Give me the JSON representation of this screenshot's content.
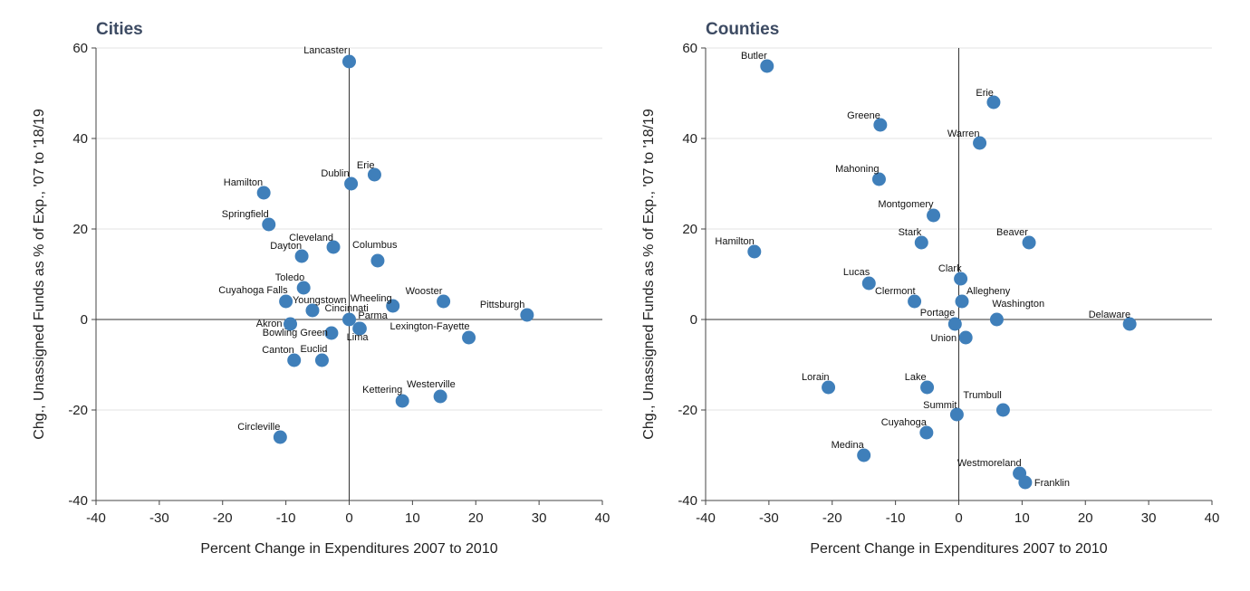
{
  "chart_data": [
    {
      "type": "scatter",
      "title": "Cities",
      "xlabel": "Percent Change in Expenditures 2007 to 2010",
      "ylabel": "Chg., Unassigned Funds as % of Exp., '07 to '18/19",
      "xlim": [
        -40,
        40
      ],
      "ylim": [
        -40,
        60
      ],
      "xticks": [
        -40,
        -30,
        -20,
        -10,
        0,
        10,
        20,
        30,
        40
      ],
      "yticks": [
        -40,
        -20,
        0,
        20,
        40,
        60
      ],
      "grid": "horizontal",
      "marker_color": "#3f7fba",
      "points": [
        {
          "label": "Lancaster",
          "x": 0,
          "y": 57
        },
        {
          "label": "Erie",
          "x": 4,
          "y": 32
        },
        {
          "label": "Dublin",
          "x": 0.3,
          "y": 30
        },
        {
          "label": "Hamilton",
          "x": -13.5,
          "y": 28
        },
        {
          "label": "Springfield",
          "x": -12.7,
          "y": 21
        },
        {
          "label": "Cleveland",
          "x": -2.5,
          "y": 16
        },
        {
          "label": "Dayton",
          "x": -7.5,
          "y": 14
        },
        {
          "label": "Columbus",
          "x": 4.5,
          "y": 13
        },
        {
          "label": "Toledo",
          "x": -7.2,
          "y": 7
        },
        {
          "label": "Cuyahoga Falls",
          "x": -10,
          "y": 4
        },
        {
          "label": "Youngstown",
          "x": -5.8,
          "y": 2
        },
        {
          "label": "Wheeling",
          "x": 6.9,
          "y": 3
        },
        {
          "label": "Wooster",
          "x": 14.9,
          "y": 4
        },
        {
          "label": "Pittsburgh",
          "x": 28.1,
          "y": 1
        },
        {
          "label": "Cincinnati",
          "x": 0,
          "y": 0
        },
        {
          "label": "Parma",
          "x": 1.7,
          "y": -2
        },
        {
          "label": "Akron",
          "x": -9.3,
          "y": -1
        },
        {
          "label": "Bowling Green",
          "x": -2.8,
          "y": -3
        },
        {
          "label": "Lima",
          "x": 1.6,
          "y": -2
        },
        {
          "label": "Lexington-Fayette",
          "x": 18.9,
          "y": -4
        },
        {
          "label": "Canton",
          "x": -8.7,
          "y": -9
        },
        {
          "label": "Euclid",
          "x": -4.3,
          "y": -9
        },
        {
          "label": "Kettering",
          "x": 8.4,
          "y": -18
        },
        {
          "label": "Westerville",
          "x": 14.4,
          "y": -17
        },
        {
          "label": "Circleville",
          "x": -10.9,
          "y": -26
        }
      ]
    },
    {
      "type": "scatter",
      "title": "Counties",
      "xlabel": "Percent Change in Expenditures 2007 to 2010",
      "ylabel": "Chg., Unassigned Funds as % of Exp., '07 to '18/19",
      "xlim": [
        -40,
        40
      ],
      "ylim": [
        -40,
        60
      ],
      "xticks": [
        -40,
        -30,
        -20,
        -10,
        0,
        10,
        20,
        30,
        40
      ],
      "yticks": [
        -40,
        -20,
        0,
        20,
        40,
        60
      ],
      "grid": "horizontal",
      "marker_color": "#3f7fba",
      "points": [
        {
          "label": "Butler",
          "x": -30.3,
          "y": 56
        },
        {
          "label": "Erie",
          "x": 5.5,
          "y": 48
        },
        {
          "label": "Greene",
          "x": -12.4,
          "y": 43
        },
        {
          "label": "Warren",
          "x": 3.3,
          "y": 39
        },
        {
          "label": "Mahoning",
          "x": -12.6,
          "y": 31
        },
        {
          "label": "Montgomery",
          "x": -4,
          "y": 23
        },
        {
          "label": "Stark",
          "x": -5.9,
          "y": 17
        },
        {
          "label": "Beaver",
          "x": 11.1,
          "y": 17
        },
        {
          "label": "Hamilton",
          "x": -32.3,
          "y": 15
        },
        {
          "label": "Clark",
          "x": 0.3,
          "y": 9
        },
        {
          "label": "Lucas",
          "x": -14.2,
          "y": 8
        },
        {
          "label": "Clermont",
          "x": -7,
          "y": 4
        },
        {
          "label": "Allegheny",
          "x": 0.5,
          "y": 4
        },
        {
          "label": "Portage",
          "x": -0.6,
          "y": -1
        },
        {
          "label": "Washington",
          "x": 6,
          "y": 0
        },
        {
          "label": "Delaware",
          "x": 27,
          "y": -1
        },
        {
          "label": "Union",
          "x": 1.1,
          "y": -4
        },
        {
          "label": "Lorain",
          "x": -20.6,
          "y": -15
        },
        {
          "label": "Lake",
          "x": -5,
          "y": -15
        },
        {
          "label": "Trumbull",
          "x": 7,
          "y": -20
        },
        {
          "label": "Summit",
          "x": -0.3,
          "y": -21
        },
        {
          "label": "Cuyahoga",
          "x": -5.1,
          "y": -25
        },
        {
          "label": "Medina",
          "x": -15,
          "y": -30
        },
        {
          "label": "Westmoreland",
          "x": 9.6,
          "y": -34
        },
        {
          "label": "Franklin",
          "x": 10.5,
          "y": -36
        }
      ]
    }
  ]
}
